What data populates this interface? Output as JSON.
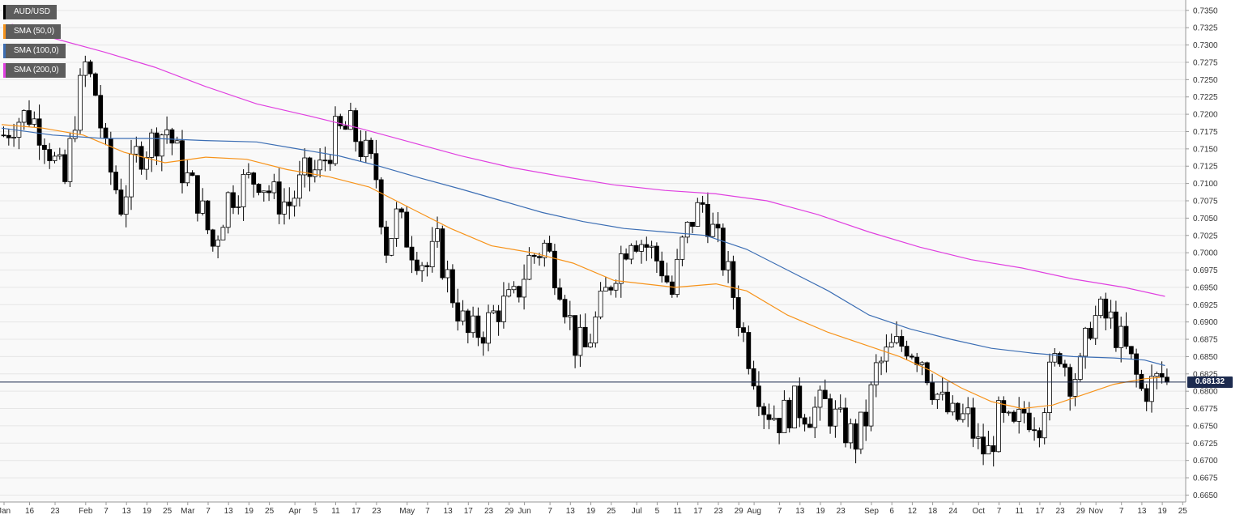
{
  "legend": [
    {
      "label": "AUD/USD",
      "color": "#000000"
    },
    {
      "label": "SMA (50,0)",
      "color": "#f7931a"
    },
    {
      "label": "SMA (100,0)",
      "color": "#3c6eb4"
    },
    {
      "label": "SMA (200,0)",
      "color": "#e040e0"
    }
  ],
  "current_price": "0.68132",
  "chart_data": {
    "type": "candlestick",
    "title": "",
    "xlabel": "",
    "ylabel": "",
    "ylim": [
      0.664,
      0.7365
    ],
    "y_ticks": [
      "0.7350",
      "0.7325",
      "0.7300",
      "0.7275",
      "0.7250",
      "0.7225",
      "0.7200",
      "0.7175",
      "0.7150",
      "0.7125",
      "0.7100",
      "0.7075",
      "0.7050",
      "0.7025",
      "0.7000",
      "0.6975",
      "0.6950",
      "0.6925",
      "0.6900",
      "0.6875",
      "0.6850",
      "0.6825",
      "0.6800",
      "0.6775",
      "0.6750",
      "0.6725",
      "0.6700",
      "0.6675",
      "0.6650"
    ],
    "x_ticks": [
      {
        "label": "Jan",
        "day": 0
      },
      {
        "label": "16",
        "day": 5
      },
      {
        "label": "23",
        "day": 10
      },
      {
        "label": "Feb",
        "day": 16
      },
      {
        "label": "7",
        "day": 20
      },
      {
        "label": "13",
        "day": 24
      },
      {
        "label": "19",
        "day": 28
      },
      {
        "label": "25",
        "day": 32
      },
      {
        "label": "Mar",
        "day": 36
      },
      {
        "label": "7",
        "day": 40
      },
      {
        "label": "13",
        "day": 44
      },
      {
        "label": "19",
        "day": 48
      },
      {
        "label": "25",
        "day": 52
      },
      {
        "label": "Apr",
        "day": 57
      },
      {
        "label": "5",
        "day": 61
      },
      {
        "label": "11",
        "day": 65
      },
      {
        "label": "17",
        "day": 69
      },
      {
        "label": "23",
        "day": 73
      },
      {
        "label": "May",
        "day": 79
      },
      {
        "label": "7",
        "day": 83
      },
      {
        "label": "13",
        "day": 87
      },
      {
        "label": "17",
        "day": 91
      },
      {
        "label": "23",
        "day": 95
      },
      {
        "label": "29",
        "day": 99
      },
      {
        "label": "Jun",
        "day": 102
      },
      {
        "label": "7",
        "day": 107
      },
      {
        "label": "13",
        "day": 111
      },
      {
        "label": "19",
        "day": 115
      },
      {
        "label": "25",
        "day": 119
      },
      {
        "label": "Jul",
        "day": 124
      },
      {
        "label": "5",
        "day": 128
      },
      {
        "label": "11",
        "day": 132
      },
      {
        "label": "17",
        "day": 136
      },
      {
        "label": "23",
        "day": 140
      },
      {
        "label": "29",
        "day": 144
      },
      {
        "label": "Aug",
        "day": 147
      },
      {
        "label": "7",
        "day": 152
      },
      {
        "label": "13",
        "day": 156
      },
      {
        "label": "19",
        "day": 160
      },
      {
        "label": "23",
        "day": 164
      },
      {
        "label": "Sep",
        "day": 170
      },
      {
        "label": "6",
        "day": 174
      },
      {
        "label": "12",
        "day": 178
      },
      {
        "label": "18",
        "day": 182
      },
      {
        "label": "24",
        "day": 186
      },
      {
        "label": "Oct",
        "day": 191
      },
      {
        "label": "7",
        "day": 195
      },
      {
        "label": "11",
        "day": 199
      },
      {
        "label": "17",
        "day": 203
      },
      {
        "label": "23",
        "day": 207
      },
      {
        "label": "29",
        "day": 211
      },
      {
        "label": "Nov",
        "day": 214
      },
      {
        "label": "7",
        "day": 219
      },
      {
        "label": "13",
        "day": 223
      },
      {
        "label": "19",
        "day": 227
      },
      {
        "label": "25",
        "day": 231
      }
    ],
    "anchors": [
      [
        0,
        0.717
      ],
      [
        2,
        0.719
      ],
      [
        5,
        0.72
      ],
      [
        8,
        0.717
      ],
      [
        10,
        0.713
      ],
      [
        12,
        0.71
      ],
      [
        14,
        0.72
      ],
      [
        16,
        0.727
      ],
      [
        18,
        0.723
      ],
      [
        20,
        0.714
      ],
      [
        23,
        0.707
      ],
      [
        26,
        0.714
      ],
      [
        29,
        0.716
      ],
      [
        32,
        0.718
      ],
      [
        35,
        0.712
      ],
      [
        38,
        0.708
      ],
      [
        41,
        0.701
      ],
      [
        44,
        0.708
      ],
      [
        47,
        0.71
      ],
      [
        50,
        0.711
      ],
      [
        53,
        0.708
      ],
      [
        56,
        0.707
      ],
      [
        59,
        0.711
      ],
      [
        62,
        0.712
      ],
      [
        65,
        0.717
      ],
      [
        68,
        0.718
      ],
      [
        71,
        0.714
      ],
      [
        73,
        0.711
      ],
      [
        75,
        0.701
      ],
      [
        77,
        0.705
      ],
      [
        80,
        0.701
      ],
      [
        83,
        0.698
      ],
      [
        85,
        0.701
      ],
      [
        88,
        0.694
      ],
      [
        91,
        0.688
      ],
      [
        94,
        0.689
      ],
      [
        97,
        0.692
      ],
      [
        100,
        0.693
      ],
      [
        103,
        0.699
      ],
      [
        106,
        0.701
      ],
      [
        109,
        0.696
      ],
      [
        112,
        0.687
      ],
      [
        114,
        0.686
      ],
      [
        117,
        0.692
      ],
      [
        120,
        0.698
      ],
      [
        123,
        0.703
      ],
      [
        126,
        0.701
      ],
      [
        129,
        0.698
      ],
      [
        131,
        0.694
      ],
      [
        133,
        0.701
      ],
      [
        135,
        0.705
      ],
      [
        137,
        0.707
      ],
      [
        139,
        0.703
      ],
      [
        141,
        0.699
      ],
      [
        143,
        0.694
      ],
      [
        145,
        0.688
      ],
      [
        147,
        0.683
      ],
      [
        149,
        0.678
      ],
      [
        152,
        0.676
      ],
      [
        155,
        0.678
      ],
      [
        158,
        0.677
      ],
      [
        161,
        0.678
      ],
      [
        164,
        0.675
      ],
      [
        167,
        0.673
      ],
      [
        169,
        0.676
      ],
      [
        171,
        0.683
      ],
      [
        174,
        0.686
      ],
      [
        177,
        0.687
      ],
      [
        180,
        0.685
      ],
      [
        182,
        0.681
      ],
      [
        184,
        0.678
      ],
      [
        186,
        0.676
      ],
      [
        189,
        0.676
      ],
      [
        191,
        0.672
      ],
      [
        193,
        0.671
      ],
      [
        195,
        0.676
      ],
      [
        198,
        0.674
      ],
      [
        200,
        0.677
      ],
      [
        203,
        0.676
      ],
      [
        205,
        0.682
      ],
      [
        207,
        0.686
      ],
      [
        209,
        0.682
      ],
      [
        211,
        0.683
      ],
      [
        213,
        0.69
      ],
      [
        215,
        0.691
      ],
      [
        217,
        0.69
      ],
      [
        219,
        0.687
      ],
      [
        221,
        0.684
      ],
      [
        223,
        0.68
      ],
      [
        225,
        0.681
      ],
      [
        227,
        0.682
      ],
      [
        228,
        0.6813
      ]
    ],
    "sma50": [
      [
        0,
        0.7185
      ],
      [
        8,
        0.718
      ],
      [
        16,
        0.717
      ],
      [
        24,
        0.7145
      ],
      [
        32,
        0.713
      ],
      [
        40,
        0.7138
      ],
      [
        48,
        0.7135
      ],
      [
        56,
        0.712
      ],
      [
        64,
        0.711
      ],
      [
        72,
        0.7095
      ],
      [
        80,
        0.7065
      ],
      [
        88,
        0.7035
      ],
      [
        96,
        0.701
      ],
      [
        104,
        0.7
      ],
      [
        112,
        0.6985
      ],
      [
        120,
        0.696
      ],
      [
        126,
        0.6955
      ],
      [
        132,
        0.695
      ],
      [
        140,
        0.6955
      ],
      [
        146,
        0.6945
      ],
      [
        154,
        0.691
      ],
      [
        162,
        0.6885
      ],
      [
        170,
        0.6865
      ],
      [
        176,
        0.685
      ],
      [
        182,
        0.683
      ],
      [
        188,
        0.6805
      ],
      [
        194,
        0.6785
      ],
      [
        200,
        0.6775
      ],
      [
        206,
        0.678
      ],
      [
        212,
        0.6795
      ],
      [
        218,
        0.681
      ],
      [
        224,
        0.6818
      ],
      [
        227,
        0.682
      ]
    ],
    "sma100": [
      [
        0,
        0.718
      ],
      [
        10,
        0.717
      ],
      [
        20,
        0.7165
      ],
      [
        30,
        0.7165
      ],
      [
        40,
        0.7162
      ],
      [
        50,
        0.716
      ],
      [
        58,
        0.715
      ],
      [
        66,
        0.714
      ],
      [
        74,
        0.7125
      ],
      [
        82,
        0.7108
      ],
      [
        90,
        0.7092
      ],
      [
        98,
        0.7075
      ],
      [
        106,
        0.7058
      ],
      [
        114,
        0.7045
      ],
      [
        122,
        0.7035
      ],
      [
        130,
        0.703
      ],
      [
        138,
        0.7025
      ],
      [
        146,
        0.7005
      ],
      [
        154,
        0.6975
      ],
      [
        162,
        0.6945
      ],
      [
        170,
        0.691
      ],
      [
        178,
        0.689
      ],
      [
        186,
        0.6875
      ],
      [
        194,
        0.6862
      ],
      [
        202,
        0.6855
      ],
      [
        210,
        0.685
      ],
      [
        218,
        0.6848
      ],
      [
        224,
        0.6845
      ],
      [
        228,
        0.6837
      ]
    ],
    "sma200": [
      [
        2,
        0.733
      ],
      [
        10,
        0.731
      ],
      [
        20,
        0.729
      ],
      [
        30,
        0.7268
      ],
      [
        40,
        0.724
      ],
      [
        50,
        0.7215
      ],
      [
        60,
        0.7198
      ],
      [
        70,
        0.718
      ],
      [
        80,
        0.716
      ],
      [
        90,
        0.714
      ],
      [
        100,
        0.7123
      ],
      [
        110,
        0.711
      ],
      [
        120,
        0.7098
      ],
      [
        130,
        0.709
      ],
      [
        140,
        0.7085
      ],
      [
        150,
        0.7075
      ],
      [
        160,
        0.7055
      ],
      [
        170,
        0.703
      ],
      [
        180,
        0.7008
      ],
      [
        190,
        0.699
      ],
      [
        200,
        0.6978
      ],
      [
        210,
        0.6962
      ],
      [
        220,
        0.695
      ],
      [
        228,
        0.6937
      ]
    ]
  }
}
